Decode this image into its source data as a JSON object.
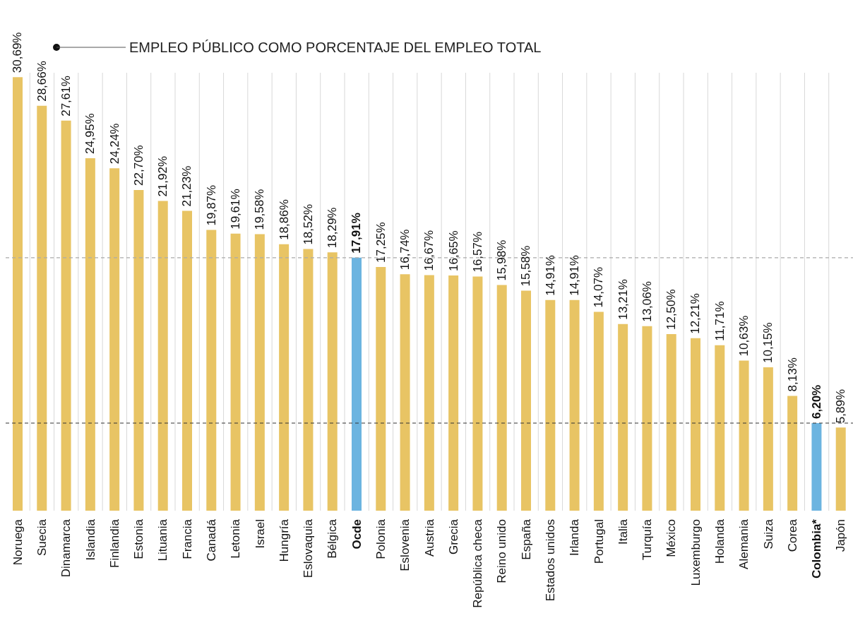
{
  "chart_data": {
    "type": "bar",
    "title": "EMPLEO PÚBLICO COMO PORCENTAJE DEL EMPLEO TOTAL",
    "categories": [
      "Noruega",
      "Suecia",
      "Dinamarca",
      "Islandia",
      "Finlandia",
      "Estonia",
      "Lituania",
      "Francia",
      "Canadá",
      "Letonia",
      "Israel",
      "Hungría",
      "Eslovaquia",
      "Bélgica",
      "Ocde",
      "Polonia",
      "Eslovenia",
      "Austria",
      "Grecia",
      "República checa",
      "Reino unido",
      "España",
      "Estados unidos",
      "Irlanda",
      "Portugal",
      "Italia",
      "Turquía",
      "México",
      "Luxemburgo",
      "Holanda",
      "Alemania",
      "Suiza",
      "Corea",
      "Colombia*",
      "Japón"
    ],
    "values": [
      30.69,
      28.66,
      27.61,
      24.95,
      24.24,
      22.7,
      21.92,
      21.23,
      19.87,
      19.61,
      19.58,
      18.86,
      18.52,
      18.29,
      17.91,
      17.25,
      16.74,
      16.67,
      16.65,
      16.57,
      15.98,
      15.58,
      14.91,
      14.91,
      14.07,
      13.21,
      13.06,
      12.5,
      12.21,
      11.71,
      10.63,
      10.15,
      8.13,
      6.2,
      5.89
    ],
    "value_labels": [
      "30,69%",
      "28,66%",
      "27,61%",
      "24,95%",
      "24,24%",
      "22,70%",
      "21,92%",
      "21,23%",
      "19,87%",
      "19,61%",
      "19,58%",
      "18,86%",
      "18,52%",
      "18,29%",
      "17,91%",
      "17,25%",
      "16,74%",
      "16,67%",
      "16,65%",
      "16,57%",
      "15,98%",
      "15,58%",
      "14,91%",
      "14,91%",
      "14,07%",
      "13,21%",
      "13,06%",
      "12,50%",
      "12,21%",
      "11,71%",
      "10,63%",
      "10,15%",
      "8,13%",
      "6,20%",
      "5,89%"
    ],
    "color": "#e8c464",
    "colors": [
      "#e8c464",
      "#e8c464",
      "#e8c464",
      "#e8c464",
      "#e8c464",
      "#e8c464",
      "#e8c464",
      "#e8c464",
      "#e8c464",
      "#e8c464",
      "#e8c464",
      "#e8c464",
      "#e8c464",
      "#e8c464",
      "#6cb4e0",
      "#e8c464",
      "#e8c464",
      "#e8c464",
      "#e8c464",
      "#e8c464",
      "#e8c464",
      "#e8c464",
      "#e8c464",
      "#e8c464",
      "#e8c464",
      "#e8c464",
      "#e8c464",
      "#e8c464",
      "#e8c464",
      "#e8c464",
      "#e8c464",
      "#e8c464",
      "#e8c464",
      "#6cb4e0",
      "#e8c464"
    ],
    "ylim": [
      0,
      31
    ],
    "tick_labels": "x",
    "grid": "x",
    "ref_lines": [
      {
        "axis": "y",
        "value": 17.91,
        "color": "#aaaaaa",
        "line_style": "dashed"
      },
      {
        "axis": "y",
        "value": 6.2,
        "color": "#333333",
        "line_style": "dashed"
      }
    ]
  }
}
